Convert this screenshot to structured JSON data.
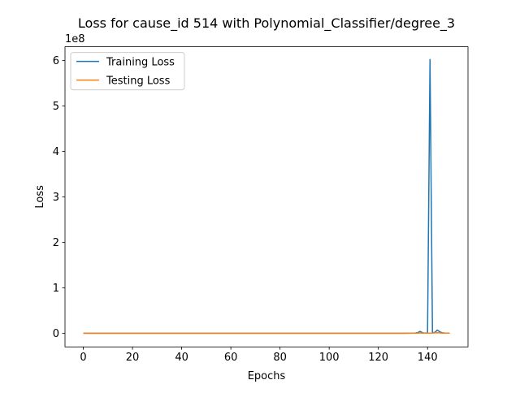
{
  "chart_data": {
    "type": "line",
    "title": "Loss for cause_id 514 with Polynomial_Classifier/degree_3",
    "xlabel": "Epochs",
    "ylabel": "Loss",
    "y_offset_label": "1e8",
    "y_scale": 100000000,
    "xlim": [
      -7.45,
      156.45
    ],
    "ylim": [
      -30000000,
      630000000
    ],
    "x_ticks": [
      0,
      20,
      40,
      60,
      80,
      100,
      120,
      140
    ],
    "x_tick_labels": [
      "0",
      "20",
      "40",
      "60",
      "80",
      "100",
      "120",
      "140"
    ],
    "y_ticks": [
      0,
      100000000,
      200000000,
      300000000,
      400000000,
      500000000,
      600000000
    ],
    "y_tick_labels": [
      "0",
      "1",
      "2",
      "3",
      "4",
      "5",
      "6"
    ],
    "grid": false,
    "legend_position": "upper-left",
    "series": [
      {
        "name": "Training Loss",
        "color": "#1f77b4",
        "x": [
          0,
          20,
          40,
          60,
          80,
          100,
          120,
          130,
          134,
          135,
          136,
          137,
          138,
          139,
          140,
          141,
          142,
          143,
          144,
          145,
          146,
          147,
          148,
          149
        ],
        "y": [
          0,
          0,
          0,
          0,
          0,
          0,
          0,
          0,
          200000,
          500000,
          1500000,
          4000000,
          1000000,
          300000,
          1000000,
          602000000,
          1000000,
          2000000,
          7000000,
          3000000,
          1000000,
          500000,
          300000,
          200000
        ]
      },
      {
        "name": "Testing Loss",
        "color": "#ff7f0e",
        "x": [
          0,
          20,
          40,
          60,
          80,
          100,
          120,
          130,
          136,
          137,
          138,
          140,
          142,
          144,
          146,
          149
        ],
        "y": [
          0,
          0,
          0,
          0,
          0,
          0,
          0,
          0,
          300000,
          800000,
          200000,
          200000,
          500000,
          1200000,
          300000,
          200000
        ]
      }
    ]
  }
}
